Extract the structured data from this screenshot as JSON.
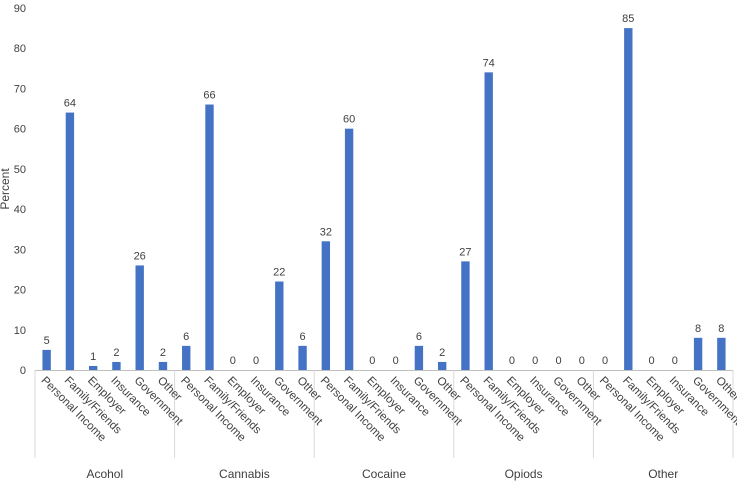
{
  "chart_data": {
    "type": "bar",
    "title": "",
    "xlabel": "",
    "ylabel": "Percent",
    "ylim": [
      0,
      90
    ],
    "yticks": [
      0,
      10,
      20,
      30,
      40,
      50,
      60,
      70,
      80,
      90
    ],
    "grid": false,
    "legend": "none",
    "bar_color": "#4472C4",
    "subcategories": [
      "Personal Income",
      "Family/Friends",
      "Employer",
      "Insurance",
      "Government",
      "Other"
    ],
    "groups": [
      {
        "name": "Acohol",
        "values": [
          5,
          64,
          1,
          2,
          26,
          2
        ],
        "labels": [
          "5",
          "64",
          "1",
          "2",
          "26",
          "2"
        ]
      },
      {
        "name": "Cannabis",
        "values": [
          6,
          66,
          0,
          0,
          22,
          6
        ],
        "labels": [
          "6",
          "66",
          "0",
          "0",
          "22",
          "6"
        ]
      },
      {
        "name": "Cocaine",
        "values": [
          32,
          60,
          0,
          0,
          6,
          2
        ],
        "labels": [
          "32",
          "60",
          "0",
          "0",
          "6",
          "2"
        ]
      },
      {
        "name": "Opiods",
        "values": [
          27,
          74,
          0,
          0,
          0,
          0
        ],
        "labels": [
          "27",
          "74",
          "0",
          "0",
          "0",
          "0"
        ]
      },
      {
        "name": "Other",
        "values": [
          0,
          85,
          0,
          0,
          8,
          8
        ],
        "labels": [
          "0",
          "85",
          "0",
          "0",
          "8",
          "8"
        ]
      }
    ]
  }
}
